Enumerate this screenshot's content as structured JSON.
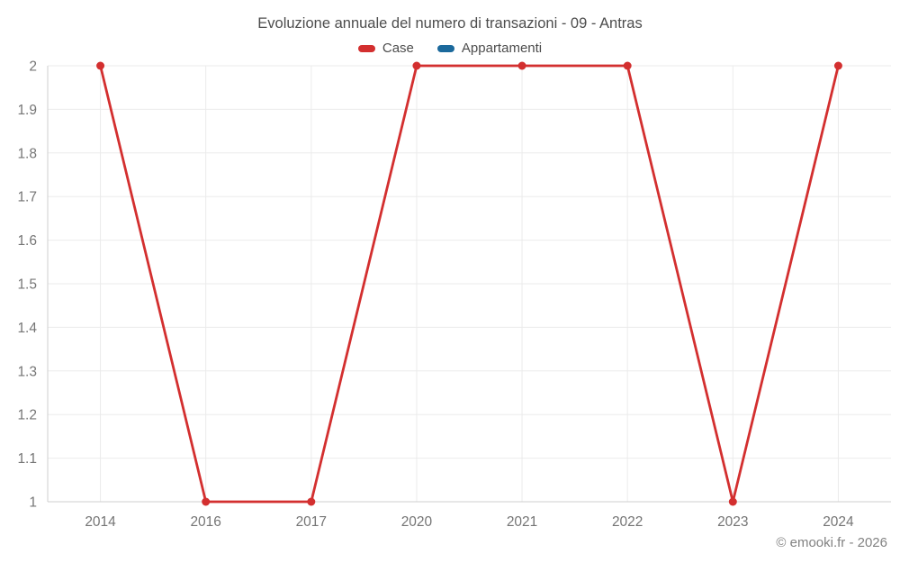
{
  "chart_data": {
    "type": "line",
    "title": "Evoluzione annuale del numero di transazioni - 09 - Antras",
    "categories": [
      "2014",
      "2016",
      "2017",
      "2020",
      "2021",
      "2022",
      "2023",
      "2024"
    ],
    "series": [
      {
        "name": "Case",
        "color": "#d32f2f",
        "values": [
          2,
          1,
          1,
          2,
          2,
          2,
          1,
          2
        ]
      },
      {
        "name": "Appartamenti",
        "color": "#1b699c",
        "values": []
      }
    ],
    "ylim": [
      1,
      2
    ],
    "yticks": [
      1,
      1.1,
      1.2,
      1.3,
      1.4,
      1.5,
      1.6,
      1.7,
      1.8,
      1.9,
      2
    ],
    "xlabel": "",
    "ylabel": "",
    "grid": true,
    "legend_position": "top"
  },
  "footer": {
    "copyright": "© emooki.fr - 2026"
  },
  "colors": {
    "grid": "#ebebeb",
    "axis": "#cfcfcf",
    "tick_label": "#757575",
    "title_text": "#4d4d4d"
  }
}
